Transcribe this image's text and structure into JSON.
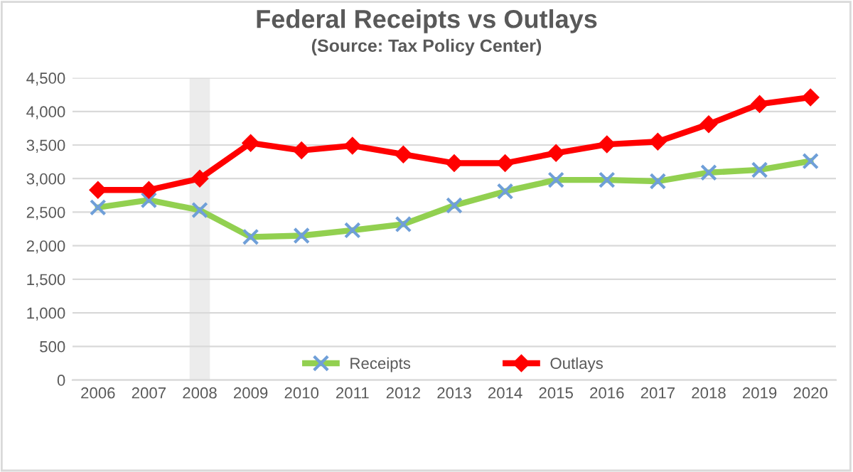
{
  "chart_data": {
    "type": "line",
    "title": "Federal Receipts vs Outlays",
    "subtitle": "(Source: Tax Policy Center)",
    "x": [
      2006,
      2007,
      2008,
      2009,
      2010,
      2011,
      2012,
      2013,
      2014,
      2015,
      2016,
      2017,
      2018,
      2019,
      2020
    ],
    "xlim": [
      2005.5,
      2020.5
    ],
    "xticks": [
      2006,
      2007,
      2008,
      2009,
      2010,
      2011,
      2012,
      2013,
      2014,
      2015,
      2016,
      2017,
      2018,
      2019,
      2020
    ],
    "ylim": [
      0,
      4500
    ],
    "yticks": [
      0,
      {
        "value": 500,
        "label": "500"
      },
      {
        "value": 1000,
        "label": "1,000"
      },
      {
        "value": 1500,
        "label": "1,500"
      },
      {
        "value": 2000,
        "label": "2,000"
      },
      {
        "value": 2500,
        "label": "2,500"
      },
      {
        "value": 3000,
        "label": "3,000"
      },
      {
        "value": 3500,
        "label": "3,500"
      },
      {
        "value": 4000,
        "label": "4,000"
      },
      {
        "value": 4500,
        "label": "4,500"
      }
    ],
    "grid": "y",
    "legend": "bottom",
    "bands": [
      {
        "axis": "x",
        "from": 2007.8,
        "to": 2008.2,
        "color": "#ececec"
      }
    ],
    "series": [
      {
        "name": "Receipts",
        "color": "#92d050",
        "marker": "cross",
        "values": [
          2570,
          2680,
          2530,
          2130,
          2150,
          2230,
          2320,
          2600,
          2810,
          2980,
          2980,
          2960,
          3090,
          3130,
          3260
        ]
      },
      {
        "name": "Outlays",
        "color": "#ff0000",
        "marker": "diamond",
        "values": [
          2830,
          2830,
          3000,
          3530,
          3420,
          3490,
          3360,
          3230,
          3230,
          3380,
          3510,
          3550,
          3810,
          4110,
          4210
        ]
      }
    ]
  }
}
